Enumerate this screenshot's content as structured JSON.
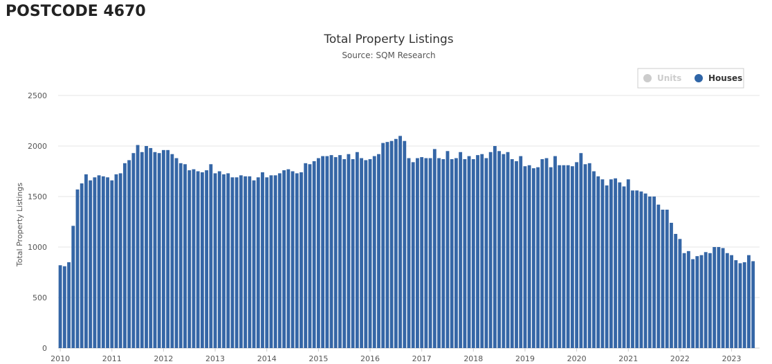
{
  "page": {
    "heading": "POSTCODE 4670"
  },
  "chart_data": {
    "type": "bar",
    "title": "Total Property Listings",
    "subtitle": "Source: SQM Research",
    "ylabel": "Total Property Listings",
    "xlabel": "",
    "ylim": [
      0,
      2500
    ],
    "y_ticks": [
      0,
      500,
      1000,
      1500,
      2000,
      2500
    ],
    "x_tick_labels": [
      "2010",
      "2011",
      "2012",
      "2013",
      "2014",
      "2015",
      "2016",
      "2017",
      "2018",
      "2019",
      "2020",
      "2021",
      "2022",
      "2023"
    ],
    "x_start": "2010-01",
    "frequency": "monthly",
    "grid": true,
    "legend_position": "top-right",
    "legend": [
      {
        "name": "Units",
        "color": "#cccccc",
        "hidden": true
      },
      {
        "name": "Houses",
        "color": "#2f65a7",
        "hidden": false
      }
    ],
    "series": [
      {
        "name": "Houses",
        "color": "#3566a6",
        "values": [
          820,
          810,
          850,
          1210,
          1570,
          1630,
          1720,
          1660,
          1690,
          1710,
          1700,
          1690,
          1660,
          1720,
          1730,
          1830,
          1860,
          1930,
          2010,
          1940,
          2000,
          1980,
          1940,
          1930,
          1960,
          1960,
          1920,
          1880,
          1830,
          1820,
          1760,
          1770,
          1750,
          1740,
          1760,
          1820,
          1730,
          1750,
          1720,
          1730,
          1690,
          1690,
          1710,
          1700,
          1700,
          1660,
          1690,
          1740,
          1690,
          1710,
          1710,
          1730,
          1760,
          1770,
          1750,
          1730,
          1740,
          1830,
          1820,
          1850,
          1880,
          1900,
          1900,
          1910,
          1890,
          1910,
          1870,
          1920,
          1870,
          1940,
          1880,
          1860,
          1870,
          1900,
          1920,
          2030,
          2040,
          2050,
          2070,
          2100,
          2050,
          1880,
          1840,
          1880,
          1890,
          1880,
          1880,
          1970,
          1880,
          1870,
          1950,
          1870,
          1880,
          1940,
          1870,
          1900,
          1870,
          1910,
          1920,
          1880,
          1940,
          2000,
          1950,
          1920,
          1940,
          1870,
          1850,
          1900,
          1800,
          1810,
          1780,
          1790,
          1870,
          1880,
          1790,
          1900,
          1810,
          1810,
          1810,
          1800,
          1840,
          1930,
          1820,
          1830,
          1750,
          1700,
          1670,
          1610,
          1670,
          1680,
          1640,
          1600,
          1670,
          1560,
          1560,
          1550,
          1530,
          1500,
          1500,
          1420,
          1370,
          1370,
          1240,
          1130,
          1080,
          940,
          960,
          880,
          910,
          920,
          950,
          940,
          1000,
          1000,
          990,
          940,
          920,
          870,
          840,
          850,
          920,
          860
        ]
      }
    ]
  }
}
